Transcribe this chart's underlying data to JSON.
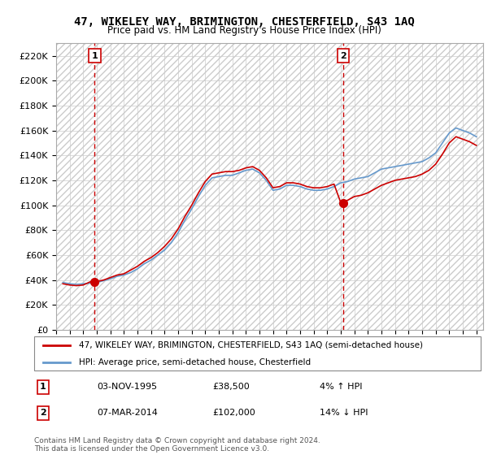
{
  "title": "47, WIKELEY WAY, BRIMINGTON, CHESTERFIELD, S43 1AQ",
  "subtitle": "Price paid vs. HM Land Registry's House Price Index (HPI)",
  "ylabel_ticks": [
    "£0",
    "£20K",
    "£40K",
    "£60K",
    "£80K",
    "£100K",
    "£120K",
    "£140K",
    "£160K",
    "£180K",
    "£200K",
    "£220K"
  ],
  "ytick_values": [
    0,
    20000,
    40000,
    60000,
    80000,
    100000,
    120000,
    140000,
    160000,
    180000,
    200000,
    220000
  ],
  "ylim": [
    0,
    230000
  ],
  "sale1": {
    "date_num": 1995.84,
    "price": 38500,
    "label": "1"
  },
  "sale2": {
    "date_num": 2014.18,
    "price": 102000,
    "label": "2"
  },
  "legend_line1": "47, WIKELEY WAY, BRIMINGTON, CHESTERFIELD, S43 1AQ (semi-detached house)",
  "legend_line2": "HPI: Average price, semi-detached house, Chesterfield",
  "table_rows": [
    [
      "1",
      "03-NOV-1995",
      "£38,500",
      "4% ↑ HPI"
    ],
    [
      "2",
      "07-MAR-2014",
      "£102,000",
      "14% ↓ HPI"
    ]
  ],
  "footnote": "Contains HM Land Registry data © Crown copyright and database right 2024.\nThis data is licensed under the Open Government Licence v3.0.",
  "hpi_color": "#6699cc",
  "price_color": "#cc0000",
  "marker_color": "#cc0000",
  "vline_color": "#cc0000",
  "grid_color": "#cccccc",
  "hatch_color": "#dddddd",
  "xlim_left": 1993.0,
  "xlim_right": 2024.5
}
